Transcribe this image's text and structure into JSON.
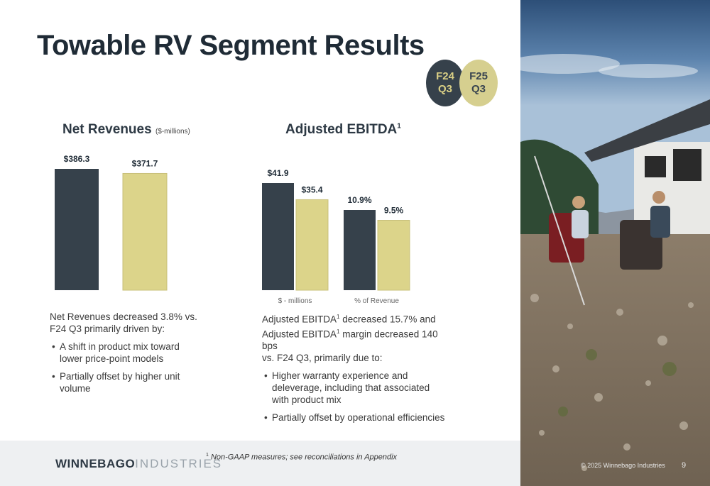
{
  "title": "Towable RV Segment Results",
  "legend": {
    "f24": {
      "line1": "F24",
      "line2": "Q3"
    },
    "f25": {
      "line1": "F25",
      "line2": "Q3"
    }
  },
  "net_revenues": {
    "title": "Net Revenues",
    "unit": "($-millions)",
    "body": "Net Revenues decreased 3.8% vs. F24 Q3 primarily driven by:",
    "bullets": [
      "A shift in product mix toward lower price-point models",
      "Partially offset by higher unit volume"
    ]
  },
  "ebitda": {
    "title": "Adjusted EBITDA",
    "title_sup": "1",
    "body_line1_a": "Adjusted EBITDA",
    "body_line1_b": " decreased 15.7% and",
    "body_line2_a": "Adjusted EBITDA",
    "body_line2_b": " margin decreased 140 bps",
    "body_line3": "vs. F24 Q3, primarily due to:",
    "sup": "1",
    "bullets": [
      "Higher warranty experience and deleverage, including that associated with product mix",
      "Partially offset by operational efficiencies"
    ]
  },
  "footer": {
    "logo_bold": "WINNEBAGO",
    "logo_thin": "INDUSTRIES",
    "footnote_sup": "1",
    "footnote": "Non-GAAP measures; see reconciliations in Appendix",
    "copyright": "© 2025 Winnebago Industries",
    "page": "9"
  },
  "colors": {
    "f24": "#36414b",
    "f25": "#dcd48a",
    "f25_border": "#c8c07a"
  },
  "chart_data": [
    {
      "type": "bar",
      "title": "Net Revenues",
      "ylabel": "($-millions)",
      "categories": [
        ""
      ],
      "series": [
        {
          "name": "F24 Q3",
          "values": [
            386.3
          ],
          "labels": [
            "$386.3"
          ]
        },
        {
          "name": "F25 Q3",
          "values": [
            371.7
          ],
          "labels": [
            "$371.7"
          ]
        }
      ]
    },
    {
      "type": "bar",
      "title": "Adjusted EBITDA",
      "categories": [
        "$ - millions",
        "% of Revenue"
      ],
      "series": [
        {
          "name": "F24 Q3",
          "values": [
            41.9,
            10.9
          ],
          "labels": [
            "$41.9",
            "10.9%"
          ]
        },
        {
          "name": "F25 Q3",
          "values": [
            35.4,
            9.5
          ],
          "labels": [
            "$35.4",
            "9.5%"
          ]
        }
      ]
    }
  ]
}
